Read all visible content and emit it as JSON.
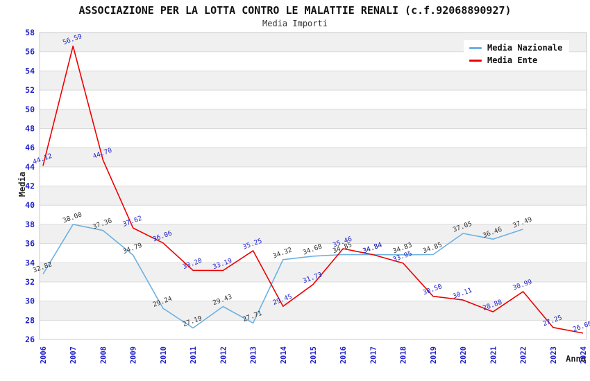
{
  "chart_data": {
    "type": "line",
    "title": "ASSOCIAZIONE PER LA LOTTA CONTRO LE MALATTIE RENALI (c.f.92068890927)",
    "subtitle": "Media Importi",
    "xlabel": "Anno",
    "ylabel": "Media",
    "categories": [
      "2006",
      "2007",
      "2008",
      "2009",
      "2010",
      "2011",
      "2012",
      "2013",
      "2014",
      "2015",
      "2016",
      "2017",
      "2018",
      "2019",
      "2020",
      "2021",
      "2022",
      "2023",
      "2024"
    ],
    "series": [
      {
        "name": "Media Nazionale",
        "color": "#6cb1e1",
        "label_color": "#333333",
        "values": [
          32.82,
          38.0,
          37.36,
          34.79,
          29.24,
          27.19,
          29.43,
          27.71,
          34.32,
          34.68,
          34.85,
          34.84,
          34.83,
          34.85,
          37.05,
          36.46,
          37.49,
          null,
          null
        ]
      },
      {
        "name": "Media Ente",
        "color": "#ee0000",
        "label_color": "#2222cc",
        "values": [
          44.12,
          56.59,
          44.7,
          37.62,
          36.06,
          33.2,
          33.19,
          35.25,
          29.45,
          31.73,
          35.46,
          34.84,
          33.95,
          30.5,
          30.11,
          28.88,
          30.99,
          27.25,
          26.66
        ]
      }
    ],
    "ylim": [
      26,
      58
    ],
    "ytick_step": 2,
    "ytick_labels": [
      "26",
      "28",
      "30",
      "32",
      "34",
      "36",
      "38",
      "40",
      "42",
      "44",
      "46",
      "48",
      "50",
      "52",
      "54",
      "56",
      "58"
    ],
    "tick_color": "#2222cc",
    "grid": {
      "on": true,
      "band_color": "#f0f0f0",
      "line_color": "#d9d9d9",
      "border_color": "#c9c9c9"
    },
    "legend_position": "top-right",
    "value_label_decimals": 2
  }
}
